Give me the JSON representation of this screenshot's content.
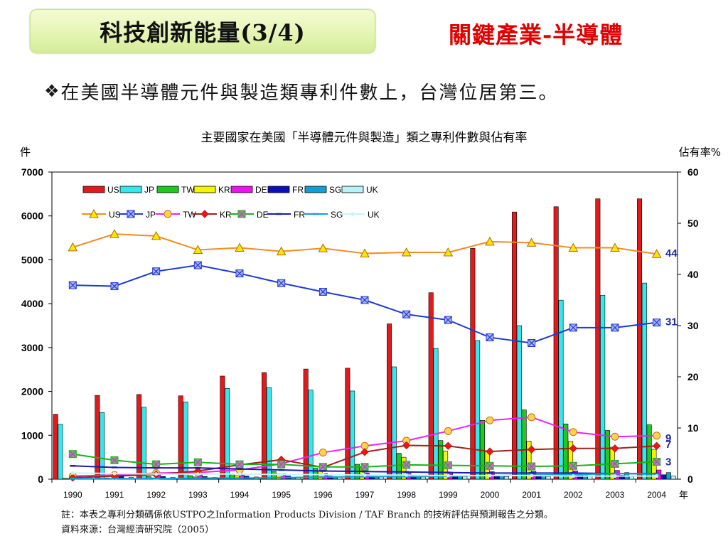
{
  "slide": {
    "title": "科技創新能量(3/4)",
    "subtitle": "關鍵產業-半導體",
    "bullet_icon": "❖",
    "bullet_text": "在美國半導體元件與製造類專利件數上，台灣位居第三。",
    "note_line1": "註：本表之專利分類碼係依USTPO之Information Products Division / TAF Branch 的技術評估與預測報告之分類。",
    "note_line2": "資料來源：台灣經濟研究院（2005）"
  },
  "chart_data": {
    "type": "bar",
    "title": "主要國家在美國「半導體元件與製造」類之專利件數與佔有率",
    "ylabel": "件",
    "y2label": "佔有率%",
    "xlabel_suffix": "年",
    "ylim": [
      0,
      7000
    ],
    "y2lim": [
      0,
      60
    ],
    "yticks": [
      0,
      1000,
      2000,
      3000,
      4000,
      5000,
      6000,
      7000
    ],
    "y2ticks": [
      0,
      10,
      20,
      30,
      40,
      50,
      60
    ],
    "categories": [
      "1990",
      "1991",
      "1992",
      "1993",
      "1994",
      "1995",
      "1996",
      "1997",
      "1998",
      "1999",
      "2000",
      "2001",
      "2002",
      "2003",
      "2004"
    ],
    "bar_series": [
      {
        "name": "US",
        "color": "#e31a1c",
        "values": [
          1480,
          1910,
          1930,
          1900,
          2350,
          2430,
          2510,
          2530,
          3540,
          4250,
          5260,
          6090,
          6210,
          6390,
          6390
        ]
      },
      {
        "name": "JP",
        "color": "#33e8ee",
        "values": [
          1250,
          1520,
          1640,
          1760,
          2070,
          2090,
          2030,
          2010,
          2560,
          2980,
          3160,
          3500,
          4080,
          4190,
          4470
        ]
      },
      {
        "name": "TW",
        "color": "#1fc91f",
        "values": [
          20,
          30,
          60,
          80,
          110,
          180,
          250,
          340,
          590,
          880,
          1340,
          1580,
          1260,
          1110,
          1240
        ]
      },
      {
        "name": "KR",
        "color": "#f5f500",
        "values": [
          10,
          20,
          30,
          50,
          80,
          120,
          180,
          260,
          500,
          640,
          650,
          870,
          860,
          730,
          680
        ]
      },
      {
        "name": "DE",
        "color": "#ee12ee",
        "values": [
          80,
          90,
          100,
          110,
          110,
          120,
          130,
          140,
          150,
          160,
          170,
          180,
          190,
          200,
          210
        ]
      },
      {
        "name": "FR",
        "color": "#0b10b8",
        "values": [
          60,
          60,
          60,
          60,
          70,
          70,
          70,
          70,
          80,
          80,
          80,
          90,
          90,
          90,
          100
        ]
      },
      {
        "name": "SG",
        "color": "#119fd6",
        "values": [
          5,
          10,
          10,
          20,
          20,
          30,
          40,
          50,
          60,
          70,
          90,
          100,
          120,
          150,
          150
        ]
      },
      {
        "name": "UK",
        "color": "#b7f2f7",
        "values": [
          40,
          40,
          40,
          40,
          50,
          50,
          50,
          50,
          50,
          60,
          60,
          60,
          60,
          60,
          70
        ]
      }
    ],
    "line_series": [
      {
        "name": "US",
        "color": "#f08c24",
        "marker": "triangle",
        "marker_color": "#ffe600",
        "values": [
          45.3,
          47.9,
          47.5,
          44.8,
          45.2,
          44.5,
          45.1,
          44.1,
          44.3,
          44.3,
          46.4,
          46.2,
          45.2,
          45.2,
          44.0
        ]
      },
      {
        "name": "JP",
        "color": "#1f3ad4",
        "marker": "x-square",
        "marker_color": "#aab4f5",
        "values": [
          37.9,
          37.7,
          40.6,
          41.8,
          40.2,
          38.3,
          36.6,
          35.0,
          32.2,
          31.1,
          27.7,
          26.6,
          29.6,
          29.6,
          30.6
        ]
      },
      {
        "name": "TW",
        "color": "#ee22ee",
        "marker": "circle",
        "marker_color": "#ffd34d",
        "values": [
          0.6,
          0.8,
          1.2,
          1.3,
          1.8,
          3.0,
          5.2,
          6.5,
          7.5,
          9.4,
          11.5,
          12.1,
          9.2,
          8.3,
          8.5
        ]
      },
      {
        "name": "KR",
        "color": "#a0211c",
        "marker": "diamond",
        "marker_color": "#ff1010",
        "values": [
          0.3,
          0.6,
          0.9,
          1.6,
          2.8,
          3.8,
          2.3,
          5.3,
          6.6,
          6.5,
          5.4,
          5.8,
          6.0,
          6.0,
          6.5
        ]
      },
      {
        "name": "DE",
        "color": "#19b219",
        "marker": "x-square",
        "marker_color": "#e35ee3",
        "values": [
          4.9,
          3.7,
          2.9,
          3.3,
          2.9,
          2.9,
          2.4,
          2.4,
          2.8,
          2.7,
          2.6,
          2.5,
          2.6,
          3.0,
          3.4
        ]
      },
      {
        "name": "FR",
        "color": "#1a1ab8",
        "marker": "dash",
        "marker_color": "#1a1ab8",
        "values": [
          2.6,
          2.3,
          2.2,
          2.2,
          2.0,
          1.8,
          1.6,
          1.5,
          1.4,
          1.3,
          1.2,
          1.2,
          1.2,
          1.1,
          1.1
        ]
      },
      {
        "name": "SG",
        "color": "#119fd6",
        "marker": "dash",
        "marker_color": "#119fd6",
        "values": [
          0.1,
          0.1,
          0.1,
          0.2,
          0.2,
          0.3,
          0.4,
          0.5,
          0.5,
          0.6,
          0.7,
          0.8,
          0.9,
          1.1,
          1.0
        ]
      },
      {
        "name": "UK",
        "color": "#c8f2f7",
        "marker": "dot",
        "marker_color": "#c8f2f7",
        "values": [
          1.2,
          1.1,
          1.0,
          1.0,
          1.0,
          0.9,
          0.9,
          0.8,
          0.8,
          0.7,
          0.7,
          0.7,
          0.6,
          0.6,
          0.6
        ]
      }
    ],
    "end_labels": [
      {
        "text": "44",
        "series": "US"
      },
      {
        "text": "31",
        "series": "JP"
      },
      {
        "text": "9",
        "series": "TW"
      },
      {
        "text": "7",
        "series": "KR"
      },
      {
        "text": "3",
        "series": "DE"
      }
    ]
  }
}
